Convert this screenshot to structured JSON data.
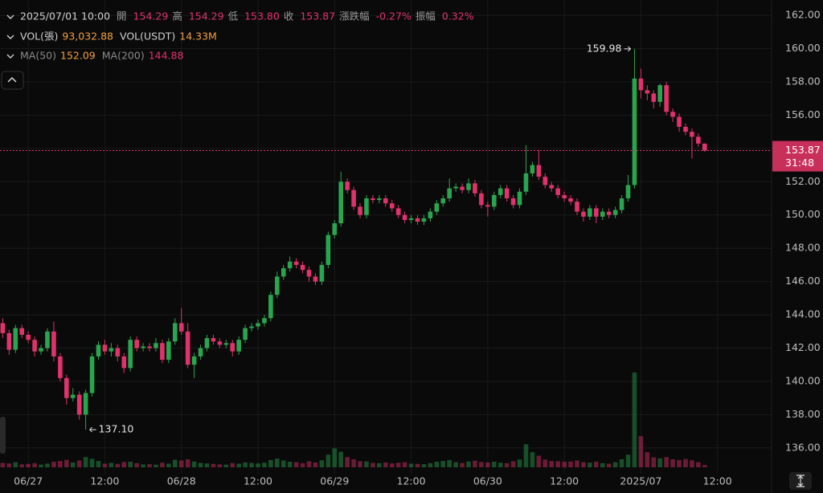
{
  "chart_data": {
    "type": "candlestick",
    "info_rows": [
      [
        {
          "text": "2025/07/01 10:00",
          "color": "#d0d0d0"
        },
        {
          "text": "開",
          "color": "#9a9a9a"
        },
        {
          "text": "154.29",
          "color": "#e0336b"
        },
        {
          "text": "高",
          "color": "#9a9a9a"
        },
        {
          "text": "154.29",
          "color": "#e0336b"
        },
        {
          "text": "低",
          "color": "#9a9a9a"
        },
        {
          "text": "153.80",
          "color": "#e0336b"
        },
        {
          "text": "收",
          "color": "#9a9a9a"
        },
        {
          "text": "153.87",
          "color": "#e0336b"
        },
        {
          "text": "漲跌幅",
          "color": "#9a9a9a"
        },
        {
          "text": "-0.27%",
          "color": "#e0336b"
        },
        {
          "text": "振幅",
          "color": "#9a9a9a"
        },
        {
          "text": "0.32%",
          "color": "#e0336b"
        }
      ],
      [
        {
          "text": "VOL(張)",
          "color": "#d0d0d0"
        },
        {
          "text": "93,032.88",
          "color": "#f0a040"
        },
        {
          "text": "VOL(USDT)",
          "color": "#d0d0d0"
        },
        {
          "text": "14.33M",
          "color": "#f0a040"
        }
      ],
      [
        {
          "text": "MA(50)",
          "color": "#8a8a8a"
        },
        {
          "text": "152.09",
          "color": "#f0a040"
        },
        {
          "text": "MA(200)",
          "color": "#8a8a8a"
        },
        {
          "text": "144.88",
          "color": "#e0336b"
        }
      ]
    ],
    "categories": [
      null,
      null,
      null,
      null,
      "06/27",
      null,
      null,
      null,
      null,
      null,
      null,
      null,
      null,
      null,
      null,
      null,
      "12:00",
      null,
      null,
      null,
      null,
      null,
      null,
      null,
      null,
      null,
      null,
      null,
      "06/28",
      null,
      null,
      null,
      null,
      null,
      null,
      null,
      null,
      null,
      null,
      null,
      "12:00",
      null,
      null,
      null,
      null,
      null,
      null,
      null,
      null,
      null,
      null,
      null,
      "06/29",
      null,
      null,
      null,
      null,
      null,
      null,
      null,
      null,
      null,
      null,
      null,
      "12:00",
      null,
      null,
      null,
      null,
      null,
      null,
      null,
      null,
      null,
      null,
      null,
      "06/30",
      null,
      null,
      null,
      null,
      null,
      null,
      null,
      null,
      null,
      null,
      null,
      "12:00",
      null,
      null,
      null,
      null,
      null,
      null,
      null,
      null,
      null,
      null,
      null,
      "2025/07",
      null,
      null,
      null,
      null,
      null,
      null,
      null,
      null,
      null,
      null,
      null,
      "12:00"
    ],
    "open": [
      143.5,
      142.9,
      141.9,
      143.2,
      142.8,
      142.5,
      141.8,
      142.0,
      143.0,
      141.5,
      140.2,
      139.0,
      139.2,
      138.0,
      139.3,
      141.5,
      142.2,
      141.8,
      142.0,
      141.5,
      140.8,
      142.5,
      142.0,
      142.1,
      142.0,
      142.3,
      141.3,
      142.4,
      143.5,
      143.0,
      141.0,
      141.5,
      142.0,
      142.6,
      142.4,
      142.2,
      142.3,
      141.8,
      142.5,
      143.2,
      143.3,
      143.5,
      143.8,
      145.2,
      146.3,
      146.8,
      147.2,
      147.0,
      146.7,
      146.3,
      146.0,
      147.0,
      148.8,
      149.5,
      152.0,
      151.5,
      150.5,
      150.0,
      151.0,
      150.9,
      151.0,
      150.7,
      150.4,
      150.0,
      149.7,
      149.8,
      149.6,
      149.8,
      150.2,
      150.7,
      151.0,
      151.6,
      151.7,
      151.5,
      151.9,
      151.3,
      150.6,
      150.5,
      151.2,
      151.6,
      151.0,
      150.6,
      151.4,
      152.5,
      153.0,
      152.3,
      151.8,
      151.6,
      151.2,
      151.0,
      150.8,
      150.2,
      149.9,
      150.4,
      149.9,
      150.2,
      150.0,
      150.3,
      151.0,
      151.8,
      158.2,
      157.5,
      157.3,
      156.8,
      157.8,
      156.2,
      155.9,
      155.3,
      155.0,
      154.7,
      154.29,
      null,
      null
    ],
    "high": [
      143.8,
      143.1,
      143.4,
      143.4,
      143.0,
      142.7,
      142.2,
      143.2,
      143.6,
      141.7,
      140.4,
      139.6,
      139.4,
      139.5,
      141.7,
      142.4,
      142.5,
      142.3,
      142.2,
      141.7,
      142.7,
      142.7,
      142.3,
      142.3,
      142.6,
      142.5,
      142.6,
      143.8,
      144.4,
      143.5,
      141.7,
      142.2,
      142.8,
      142.8,
      142.6,
      142.5,
      142.5,
      142.7,
      143.4,
      143.5,
      143.7,
      144.0,
      145.4,
      146.6,
      147.0,
      147.5,
      147.4,
      147.2,
      146.9,
      146.5,
      147.2,
      149.0,
      149.7,
      152.6,
      152.2,
      151.7,
      150.7,
      151.2,
      151.2,
      151.2,
      151.2,
      150.9,
      150.6,
      150.2,
      150.0,
      150.0,
      150.0,
      150.4,
      150.9,
      151.2,
      152.2,
      151.9,
      151.9,
      152.2,
      152.1,
      151.5,
      150.8,
      151.4,
      151.8,
      151.8,
      151.2,
      151.6,
      154.2,
      153.2,
      153.9,
      152.5,
      152.0,
      151.8,
      151.4,
      151.2,
      151.0,
      150.4,
      150.6,
      150.6,
      150.4,
      150.4,
      150.5,
      151.2,
      152.4,
      159.98,
      158.8,
      157.8,
      157.5,
      157.9,
      158.0,
      156.4,
      156.1,
      155.5,
      155.2,
      154.9,
      154.29,
      null,
      null
    ],
    "low": [
      142.6,
      141.6,
      141.7,
      142.6,
      142.3,
      141.5,
      141.6,
      141.8,
      141.2,
      140.0,
      138.6,
      138.8,
      137.7,
      137.1,
      139.1,
      141.3,
      141.6,
      141.5,
      141.2,
      140.5,
      140.6,
      141.8,
      141.8,
      141.8,
      141.8,
      141.1,
      141.1,
      142.2,
      142.8,
      140.8,
      140.2,
      141.3,
      141.8,
      142.2,
      142.0,
      142.0,
      141.5,
      141.6,
      142.3,
      143.0,
      143.1,
      143.3,
      143.6,
      145.0,
      146.1,
      146.6,
      146.8,
      146.5,
      146.0,
      145.8,
      145.8,
      146.8,
      148.6,
      149.3,
      151.3,
      150.3,
      149.8,
      149.8,
      150.7,
      150.7,
      150.5,
      150.2,
      149.8,
      149.5,
      149.5,
      149.4,
      149.4,
      149.6,
      150.0,
      150.5,
      150.8,
      151.4,
      151.3,
      151.3,
      151.1,
      150.4,
      149.9,
      150.3,
      151.0,
      150.8,
      150.4,
      150.4,
      151.2,
      152.3,
      152.1,
      151.6,
      151.4,
      151.0,
      150.8,
      150.6,
      150.0,
      149.6,
      149.7,
      149.5,
      149.7,
      149.8,
      149.8,
      150.1,
      150.8,
      151.6,
      157.0,
      156.9,
      156.4,
      156.5,
      156.0,
      155.6,
      155.0,
      154.8,
      153.4,
      154.1,
      153.8,
      null,
      null
    ],
    "close": [
      142.9,
      141.9,
      143.2,
      142.8,
      142.5,
      141.8,
      142.0,
      143.0,
      141.5,
      140.2,
      139.0,
      139.2,
      138.0,
      139.3,
      141.5,
      142.2,
      141.8,
      142.0,
      141.5,
      140.8,
      142.5,
      142.0,
      142.1,
      142.0,
      142.3,
      141.3,
      142.4,
      143.5,
      143.0,
      141.0,
      141.5,
      142.0,
      142.6,
      142.4,
      142.2,
      142.3,
      141.8,
      142.5,
      143.2,
      143.3,
      143.5,
      143.8,
      145.2,
      146.3,
      146.8,
      147.2,
      147.0,
      146.7,
      146.3,
      146.0,
      147.0,
      148.8,
      149.5,
      152.0,
      151.5,
      150.5,
      150.0,
      151.0,
      150.9,
      151.0,
      150.7,
      150.4,
      150.0,
      149.7,
      149.8,
      149.6,
      149.8,
      150.2,
      150.7,
      151.0,
      151.6,
      151.7,
      151.5,
      151.9,
      151.3,
      150.6,
      150.5,
      151.2,
      151.6,
      151.0,
      150.6,
      151.4,
      152.5,
      153.0,
      152.3,
      151.8,
      151.6,
      151.2,
      151.0,
      150.8,
      150.2,
      149.9,
      150.4,
      149.9,
      150.2,
      150.0,
      150.3,
      151.0,
      151.8,
      158.2,
      157.5,
      157.3,
      156.8,
      157.8,
      156.2,
      155.9,
      155.3,
      155.0,
      154.7,
      154.29,
      153.87,
      null,
      null
    ],
    "volume": [
      180000,
      160000,
      210000,
      120000,
      140000,
      170000,
      110000,
      150000,
      230000,
      260000,
      310000,
      200000,
      280000,
      420000,
      350000,
      260000,
      150000,
      180000,
      140000,
      220000,
      230000,
      170000,
      120000,
      130000,
      110000,
      190000,
      150000,
      310000,
      280000,
      330000,
      240000,
      180000,
      160000,
      140000,
      120000,
      110000,
      170000,
      150000,
      200000,
      180000,
      160000,
      190000,
      300000,
      360000,
      280000,
      230000,
      210000,
      170000,
      250000,
      200000,
      290000,
      520000,
      780000,
      640000,
      420000,
      330000,
      250000,
      240000,
      180000,
      170000,
      200000,
      160000,
      190000,
      210000,
      150000,
      140000,
      130000,
      170000,
      230000,
      260000,
      300000,
      210000,
      180000,
      240000,
      270000,
      220000,
      200000,
      230000,
      190000,
      170000,
      250000,
      320000,
      950000,
      620000,
      480000,
      320000,
      260000,
      250000,
      230000,
      240000,
      280000,
      210000,
      190000,
      230000,
      170000,
      150000,
      210000,
      330000,
      520000,
      3900000,
      1280000,
      620000,
      410000,
      370000,
      420000,
      330000,
      300000,
      340000,
      290000,
      210000,
      93032.88,
      null,
      null
    ],
    "up_color": "#2aa54f",
    "down_color": "#e0336b",
    "ylim": [
      134.45,
      162.92
    ],
    "yticks": [
      {
        "value": 136,
        "label": "136.00"
      },
      {
        "value": 138,
        "label": "138.00"
      },
      {
        "value": 140,
        "label": "140.00"
      },
      {
        "value": 142,
        "label": "142.00"
      },
      {
        "value": 144,
        "label": "144.00"
      },
      {
        "value": 146,
        "label": "146.00"
      },
      {
        "value": 148,
        "label": "148.00"
      },
      {
        "value": 150,
        "label": "150.00"
      },
      {
        "value": 152,
        "label": "152.00"
      },
      {
        "value": 154,
        "label": "154.00"
      },
      {
        "value": 156,
        "label": "156.00"
      },
      {
        "value": 158,
        "label": "158.00"
      },
      {
        "value": 160,
        "label": "160.00"
      },
      {
        "value": 162,
        "label": "162.00"
      }
    ],
    "max_label": "159.98",
    "min_label": "137.10",
    "countdown": "31:48",
    "grid": true
  }
}
